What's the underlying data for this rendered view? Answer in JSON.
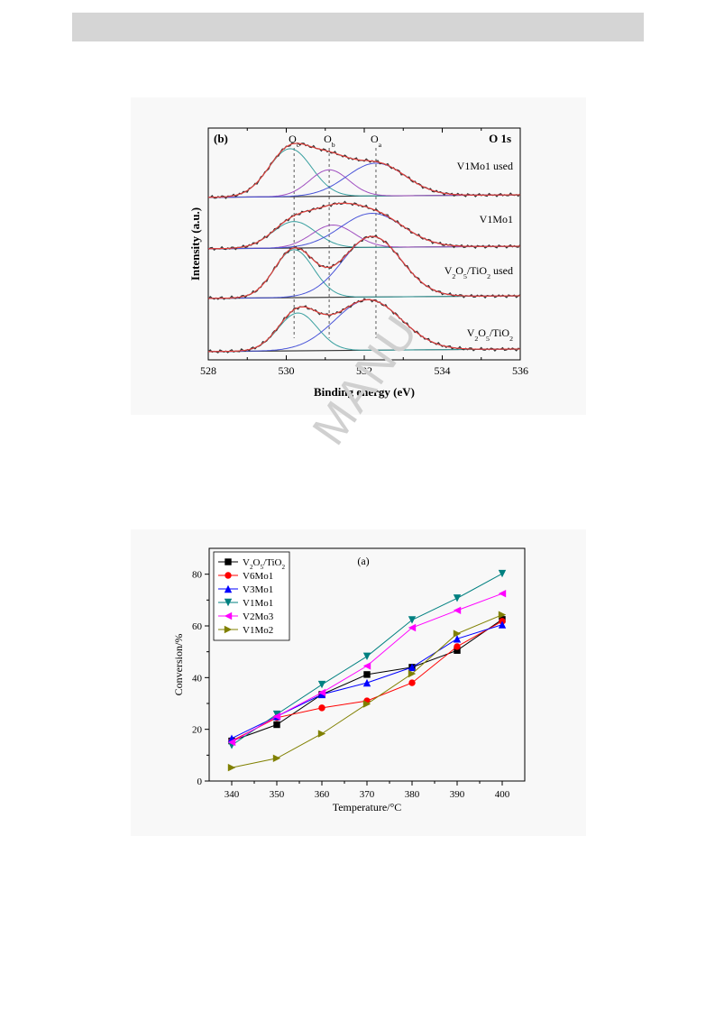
{
  "colors": {
    "header_bar": "#d5d5d5",
    "panel_bg": "#f8f8f8",
    "raw": "#333333",
    "envelope": "#e8403c",
    "Oc": "#3aa0a0",
    "Ob": "#a050c0",
    "Oa": "#4a55d8",
    "baseline": "#333333"
  },
  "watermark": "MANU",
  "chart_data": [
    {
      "type": "line",
      "panel_label": "(b)",
      "title": "O 1s",
      "xlabel": "Binding energy (eV)",
      "ylabel": "Intensity (a.u.)",
      "xlim": [
        528,
        536
      ],
      "x_reversed": false,
      "xticks": [
        "528",
        "530",
        "532",
        "534",
        "536"
      ],
      "peak_labels": [
        {
          "main": "O",
          "sub": "c",
          "x": 530.2
        },
        {
          "main": "O",
          "sub": "b",
          "x": 531.1
        },
        {
          "main": "O",
          "sub": "a",
          "x": 532.3
        }
      ],
      "spectra": [
        {
          "label_parts": [
            [
              "V1Mo1 used",
              false
            ]
          ],
          "peaks": [
            {
              "component": "Oc",
              "center": 530.1,
              "height": 0.38,
              "width": 0.55
            },
            {
              "component": "Ob",
              "center": 531.1,
              "height": 0.21,
              "width": 0.5
            },
            {
              "component": "Oa",
              "center": 532.3,
              "height": 0.26,
              "width": 0.75
            }
          ]
        },
        {
          "label_parts": [
            [
              "V1Mo1",
              false
            ]
          ],
          "peaks": [
            {
              "component": "Oc",
              "center": 530.2,
              "height": 0.21,
              "width": 0.55
            },
            {
              "component": "Ob",
              "center": 531.2,
              "height": 0.18,
              "width": 0.55
            },
            {
              "component": "Oa",
              "center": 532.2,
              "height": 0.27,
              "width": 0.8
            }
          ]
        },
        {
          "label_parts": [
            [
              "V",
              false
            ],
            [
              "2",
              true
            ],
            [
              "O",
              false
            ],
            [
              "5",
              true
            ],
            [
              "/TiO",
              false
            ],
            [
              "2",
              true
            ],
            [
              " used",
              false
            ]
          ],
          "peaks": [
            {
              "component": "Oc",
              "center": 530.2,
              "height": 0.38,
              "width": 0.5
            },
            {
              "component": "Oa",
              "center": 532.2,
              "height": 0.48,
              "width": 0.75
            }
          ]
        },
        {
          "label_parts": [
            [
              "V",
              false
            ],
            [
              "2",
              true
            ],
            [
              "O",
              false
            ],
            [
              "5",
              true
            ],
            [
              "/TiO",
              false
            ],
            [
              "2",
              true
            ]
          ],
          "peaks": [
            {
              "component": "Oc",
              "center": 530.3,
              "height": 0.3,
              "width": 0.5
            },
            {
              "component": "Oa",
              "center": 532.1,
              "height": 0.4,
              "width": 0.85
            }
          ]
        }
      ]
    },
    {
      "type": "line",
      "panel_label": "(a)",
      "xlabel": "Temperature/°C",
      "ylabel": "Conversion/%",
      "xlim": [
        335,
        405
      ],
      "ylim": [
        0,
        90
      ],
      "xticks": [
        "340",
        "350",
        "360",
        "370",
        "380",
        "390",
        "400"
      ],
      "yticks": [
        "0",
        "20",
        "40",
        "60",
        "80"
      ],
      "x": [
        340,
        350,
        360,
        370,
        380,
        390,
        400
      ],
      "series": [
        {
          "name_parts": [
            [
              "V",
              false
            ],
            [
              "2",
              true
            ],
            [
              "O",
              false
            ],
            [
              "5",
              true
            ],
            [
              "/TiO",
              false
            ],
            [
              "2",
              true
            ]
          ],
          "color": "#000000",
          "marker": "square",
          "values": [
            15.5,
            21.8,
            33.5,
            41.2,
            44.0,
            50.5,
            62.5
          ]
        },
        {
          "name_parts": [
            [
              "V6Mo1",
              false
            ]
          ],
          "color": "#ff0000",
          "marker": "circle",
          "values": [
            15.5,
            24.5,
            28.3,
            31.0,
            38.0,
            52.0,
            61.8
          ]
        },
        {
          "name_parts": [
            [
              "V3Mo1",
              false
            ]
          ],
          "color": "#0000ff",
          "marker": "triangle-up",
          "values": [
            16.5,
            25.0,
            33.5,
            38.0,
            44.0,
            55.0,
            60.5
          ]
        },
        {
          "name_parts": [
            [
              "V1Mo1",
              false
            ]
          ],
          "color": "#008080",
          "marker": "triangle-down",
          "values": [
            13.8,
            25.8,
            37.3,
            48.2,
            62.3,
            70.7,
            80.2
          ]
        },
        {
          "name_parts": [
            [
              "V2Mo3",
              false
            ]
          ],
          "color": "#ff00ff",
          "marker": "triangle-left",
          "values": [
            15.0,
            25.0,
            34.2,
            44.5,
            59.3,
            66.0,
            72.5
          ]
        },
        {
          "name_parts": [
            [
              "V1Mo2",
              false
            ]
          ],
          "color": "#808000",
          "marker": "triangle-right",
          "values": [
            5.2,
            8.8,
            18.3,
            29.8,
            41.5,
            57.0,
            64.3
          ]
        }
      ]
    }
  ]
}
